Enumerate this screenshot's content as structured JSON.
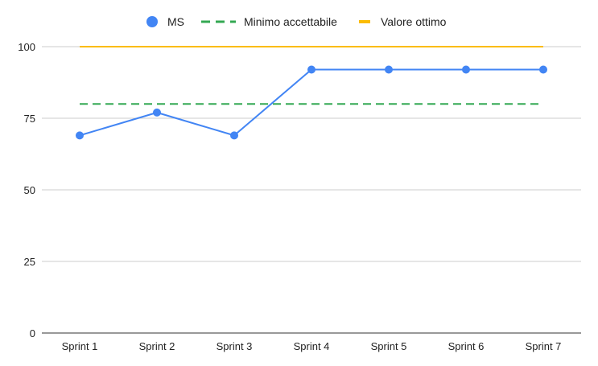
{
  "chart_data": {
    "type": "line",
    "categories": [
      "Sprint 1",
      "Sprint 2",
      "Sprint 3",
      "Sprint 4",
      "Sprint 5",
      "Sprint 6",
      "Sprint 7"
    ],
    "series": [
      {
        "name": "MS",
        "values": [
          69,
          77,
          69,
          92,
          92,
          92,
          92
        ],
        "color": "#4285f4",
        "style": "line-with-markers"
      },
      {
        "name": "Minimo accettabile",
        "values": [
          80,
          80,
          80,
          80,
          80,
          80,
          80
        ],
        "color": "#34a853",
        "style": "dashed"
      },
      {
        "name": "Valore ottimo",
        "values": [
          100,
          100,
          100,
          100,
          100,
          100,
          100
        ],
        "color": "#fbbc04",
        "style": "solid"
      }
    ],
    "ylim": [
      0,
      100
    ],
    "yticks": [
      0,
      25,
      50,
      75,
      100
    ],
    "grid": true,
    "legend_position": "top-center",
    "title": "",
    "xlabel": "",
    "ylabel": ""
  }
}
